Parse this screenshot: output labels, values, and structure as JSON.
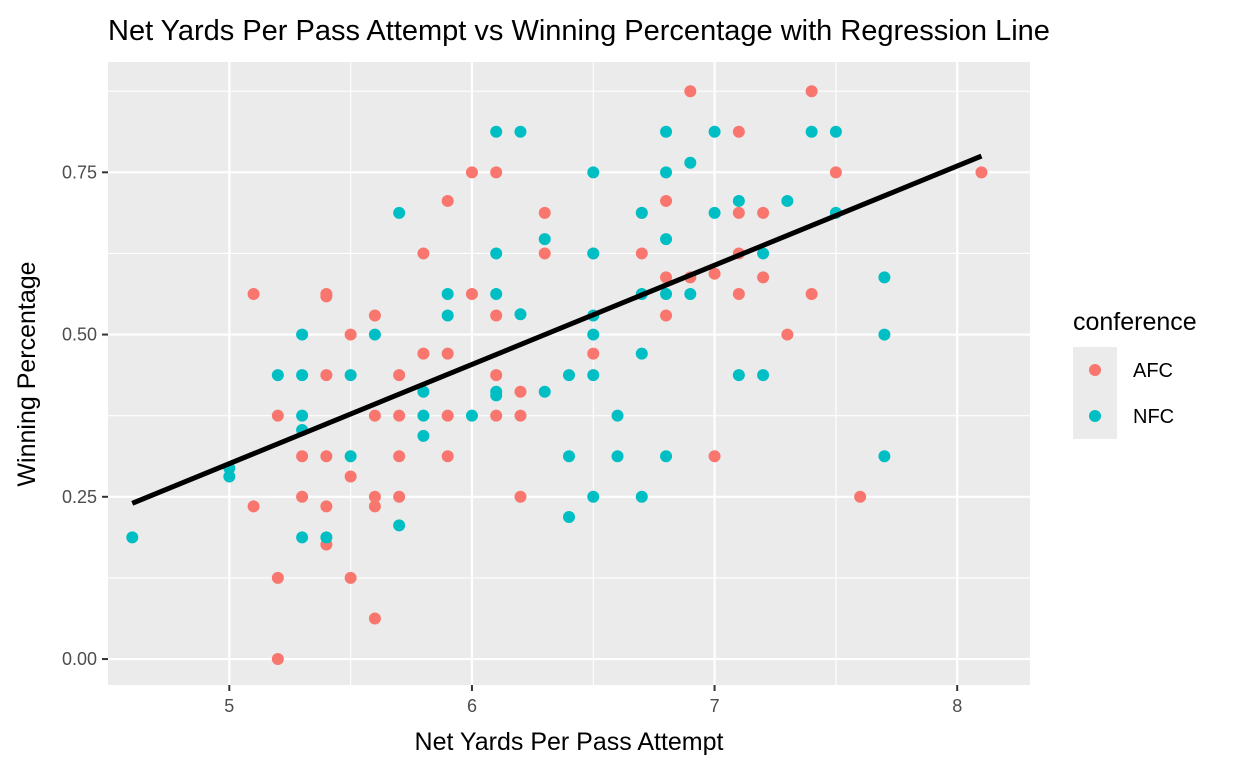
{
  "chart_data": {
    "type": "scatter",
    "title": "Net Yards Per Pass Attempt vs Winning Percentage with Regression Line",
    "xlabel": "Net Yards Per Pass Attempt",
    "ylabel": "Winning Percentage",
    "xlim": [
      4.5,
      8.3
    ],
    "ylim": [
      -0.04,
      0.92
    ],
    "x_ticks": [
      {
        "value": 5,
        "label": "5"
      },
      {
        "value": 6,
        "label": "6"
      },
      {
        "value": 7,
        "label": "7"
      },
      {
        "value": 8,
        "label": "8"
      }
    ],
    "y_ticks": [
      {
        "value": 0,
        "label": "0.00"
      },
      {
        "value": 0.25,
        "label": "0.25"
      },
      {
        "value": 0.5,
        "label": "0.50"
      },
      {
        "value": 0.75,
        "label": "0.75"
      }
    ],
    "grid": true,
    "legend": {
      "title": "conference",
      "position": "right",
      "entries": [
        {
          "name": "AFC",
          "color": "#F8766D"
        },
        {
          "name": "NFC",
          "color": "#00BFC4"
        }
      ]
    },
    "regression_line": {
      "x": [
        4.6,
        8.1
      ],
      "y": [
        0.24,
        0.775
      ],
      "color": "#000000"
    },
    "series": [
      {
        "name": "AFC",
        "color": "#F8766D",
        "points": [
          [
            5.1,
            0.5625
          ],
          [
            5.1,
            0.2353
          ],
          [
            5.2,
            0.375
          ],
          [
            5.2,
            0.125
          ],
          [
            5.2,
            0.0
          ],
          [
            5.3,
            0.3125
          ],
          [
            5.3,
            0.25
          ],
          [
            5.4,
            0.5625
          ],
          [
            5.4,
            0.5588
          ],
          [
            5.4,
            0.4375
          ],
          [
            5.4,
            0.3125
          ],
          [
            5.4,
            0.2353
          ],
          [
            5.4,
            0.1765
          ],
          [
            5.5,
            0.5
          ],
          [
            5.5,
            0.2813
          ],
          [
            5.5,
            0.125
          ],
          [
            5.6,
            0.5294
          ],
          [
            5.6,
            0.375
          ],
          [
            5.6,
            0.25
          ],
          [
            5.6,
            0.2353
          ],
          [
            5.6,
            0.0625
          ],
          [
            5.7,
            0.4375
          ],
          [
            5.7,
            0.375
          ],
          [
            5.7,
            0.3125
          ],
          [
            5.7,
            0.25
          ],
          [
            5.8,
            0.625
          ],
          [
            5.8,
            0.4706
          ],
          [
            5.9,
            0.7059
          ],
          [
            5.9,
            0.4706
          ],
          [
            5.9,
            0.375
          ],
          [
            5.9,
            0.3125
          ],
          [
            6.0,
            0.75
          ],
          [
            6.0,
            0.5625
          ],
          [
            6.1,
            0.75
          ],
          [
            6.1,
            0.5294
          ],
          [
            6.1,
            0.4375
          ],
          [
            6.1,
            0.375
          ],
          [
            6.2,
            0.4118
          ],
          [
            6.2,
            0.375
          ],
          [
            6.2,
            0.25
          ],
          [
            6.3,
            0.6875
          ],
          [
            6.3,
            0.625
          ],
          [
            6.5,
            0.625
          ],
          [
            6.5,
            0.4706
          ],
          [
            6.7,
            0.6875
          ],
          [
            6.7,
            0.625
          ],
          [
            6.8,
            0.7059
          ],
          [
            6.8,
            0.5882
          ],
          [
            6.8,
            0.5294
          ],
          [
            6.9,
            0.875
          ],
          [
            6.9,
            0.5882
          ],
          [
            7.0,
            0.5938
          ],
          [
            7.0,
            0.3125
          ],
          [
            7.1,
            0.8125
          ],
          [
            7.1,
            0.6875
          ],
          [
            7.1,
            0.625
          ],
          [
            7.1,
            0.5625
          ],
          [
            7.2,
            0.6875
          ],
          [
            7.2,
            0.5882
          ],
          [
            7.3,
            0.5
          ],
          [
            7.4,
            0.875
          ],
          [
            7.4,
            0.5625
          ],
          [
            7.5,
            0.75
          ],
          [
            7.6,
            0.25
          ],
          [
            8.1,
            0.75
          ]
        ]
      },
      {
        "name": "NFC",
        "color": "#00BFC4",
        "points": [
          [
            4.6,
            0.1875
          ],
          [
            5.0,
            0.2941
          ],
          [
            5.0,
            0.2813
          ],
          [
            5.2,
            0.4375
          ],
          [
            5.3,
            0.5
          ],
          [
            5.3,
            0.4375
          ],
          [
            5.3,
            0.375
          ],
          [
            5.3,
            0.3529
          ],
          [
            5.3,
            0.1875
          ],
          [
            5.4,
            0.1875
          ],
          [
            5.5,
            0.4375
          ],
          [
            5.5,
            0.3125
          ],
          [
            5.6,
            0.5
          ],
          [
            5.7,
            0.6875
          ],
          [
            5.7,
            0.2059
          ],
          [
            5.8,
            0.4118
          ],
          [
            5.8,
            0.375
          ],
          [
            5.8,
            0.3438
          ],
          [
            5.9,
            0.5625
          ],
          [
            5.9,
            0.5294
          ],
          [
            6.0,
            0.375
          ],
          [
            6.1,
            0.8125
          ],
          [
            6.1,
            0.625
          ],
          [
            6.1,
            0.5625
          ],
          [
            6.1,
            0.4118
          ],
          [
            6.1,
            0.4063
          ],
          [
            6.2,
            0.8125
          ],
          [
            6.2,
            0.5313
          ],
          [
            6.3,
            0.6471
          ],
          [
            6.3,
            0.4118
          ],
          [
            6.4,
            0.4375
          ],
          [
            6.4,
            0.3125
          ],
          [
            6.4,
            0.2188
          ],
          [
            6.5,
            0.75
          ],
          [
            6.5,
            0.625
          ],
          [
            6.5,
            0.5294
          ],
          [
            6.5,
            0.5
          ],
          [
            6.5,
            0.4375
          ],
          [
            6.5,
            0.25
          ],
          [
            6.6,
            0.375
          ],
          [
            6.6,
            0.3125
          ],
          [
            6.7,
            0.6875
          ],
          [
            6.7,
            0.5625
          ],
          [
            6.7,
            0.4706
          ],
          [
            6.7,
            0.25
          ],
          [
            6.8,
            0.8125
          ],
          [
            6.8,
            0.75
          ],
          [
            6.8,
            0.6471
          ],
          [
            6.8,
            0.5625
          ],
          [
            6.8,
            0.3125
          ],
          [
            6.9,
            0.7647
          ],
          [
            6.9,
            0.5625
          ],
          [
            7.0,
            0.8125
          ],
          [
            7.0,
            0.6875
          ],
          [
            7.1,
            0.7059
          ],
          [
            7.1,
            0.4375
          ],
          [
            7.2,
            0.625
          ],
          [
            7.2,
            0.4375
          ],
          [
            7.3,
            0.7059
          ],
          [
            7.4,
            0.8125
          ],
          [
            7.5,
            0.8125
          ],
          [
            7.5,
            0.6875
          ],
          [
            7.7,
            0.5882
          ],
          [
            7.7,
            0.5
          ],
          [
            7.7,
            0.3125
          ]
        ]
      }
    ]
  }
}
